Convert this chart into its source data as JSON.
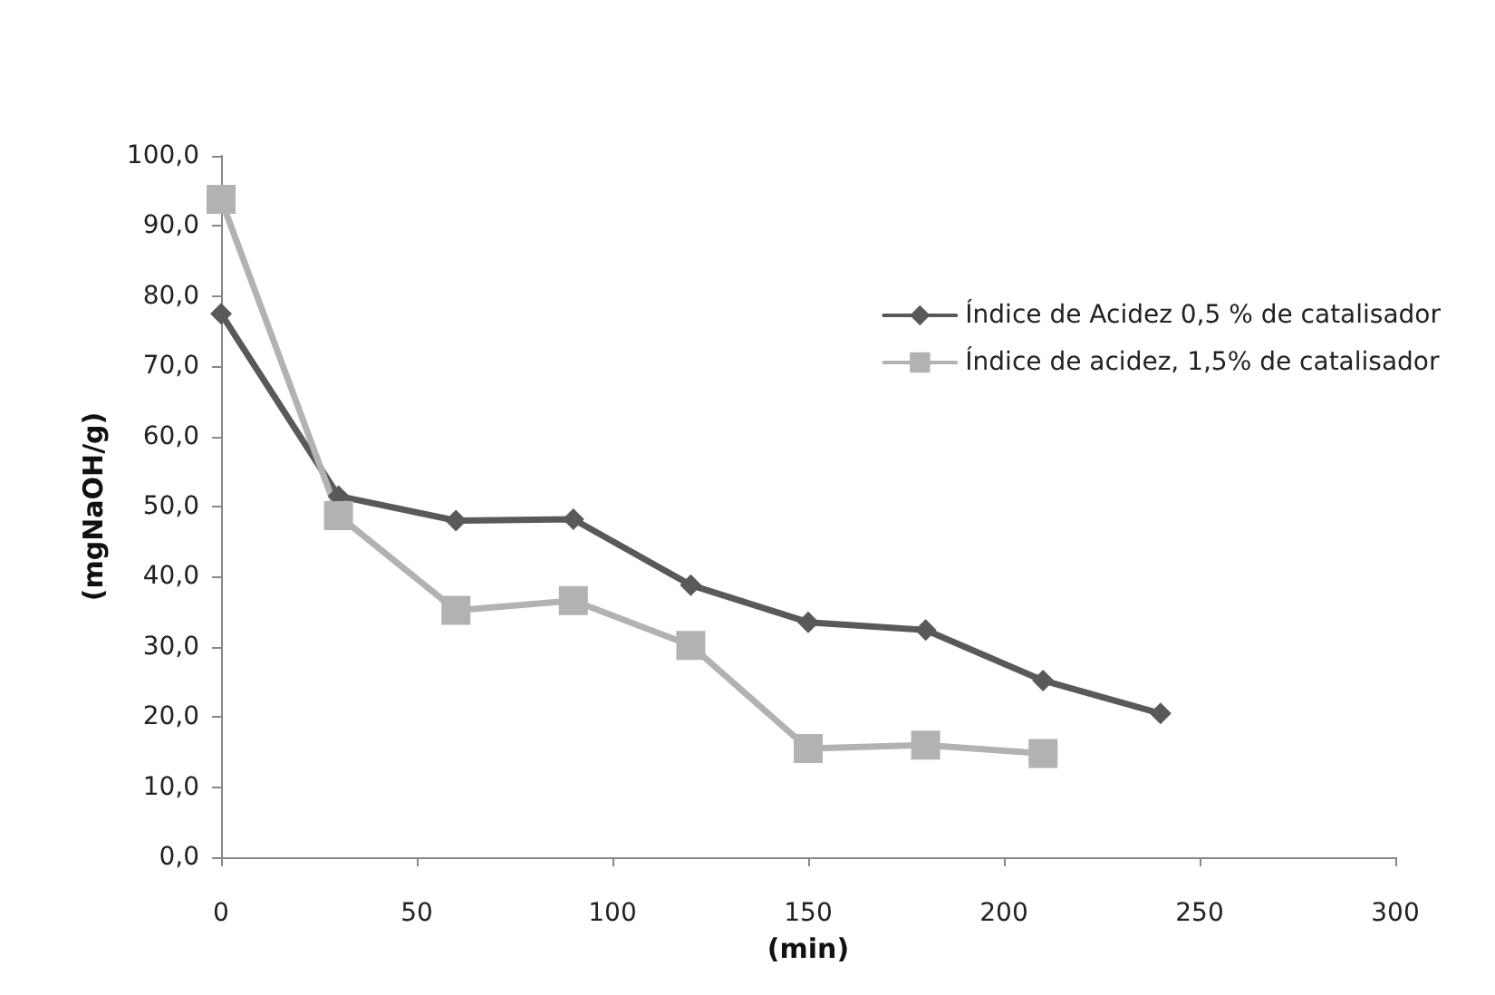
{
  "chart_data": {
    "type": "line",
    "xlabel": "(min)",
    "ylabel": "(mgNaOH/g)",
    "x": [
      0,
      30,
      60,
      90,
      120,
      150,
      180,
      210,
      240
    ],
    "series": [
      {
        "name": "Índice de Acidez 0,5 % de catalisador",
        "color": "#595959",
        "marker": "diamond",
        "values": [
          77.5,
          51.5,
          48,
          48.2,
          38.8,
          33.5,
          32.4,
          25.2,
          20.5
        ]
      },
      {
        "name": "Índice de acidez, 1,5% de catalisador",
        "color": "#b2b2b2",
        "marker": "square",
        "values": [
          93.8,
          48.7,
          35.2,
          36.6,
          30.2,
          15.5,
          16,
          14.8,
          null
        ]
      }
    ],
    "xlim": [
      0,
      300
    ],
    "xticks": [
      0,
      50,
      100,
      150,
      200,
      250,
      300
    ],
    "ylim": [
      0,
      100
    ],
    "yticks": [
      {
        "value": 0,
        "label": "0,0"
      },
      {
        "value": 10,
        "label": "10,0"
      },
      {
        "value": 20,
        "label": "20,0"
      },
      {
        "value": 30,
        "label": "30,0"
      },
      {
        "value": 40,
        "label": "40,0"
      },
      {
        "value": 50,
        "label": "50,0"
      },
      {
        "value": 60,
        "label": "60,0"
      },
      {
        "value": 70,
        "label": "70,0"
      },
      {
        "value": 80,
        "label": "80,0"
      },
      {
        "value": 90,
        "label": "90,0"
      },
      {
        "value": 100,
        "label": "100,0"
      }
    ],
    "grid": false,
    "legend": "top right",
    "line_style": "solid"
  }
}
